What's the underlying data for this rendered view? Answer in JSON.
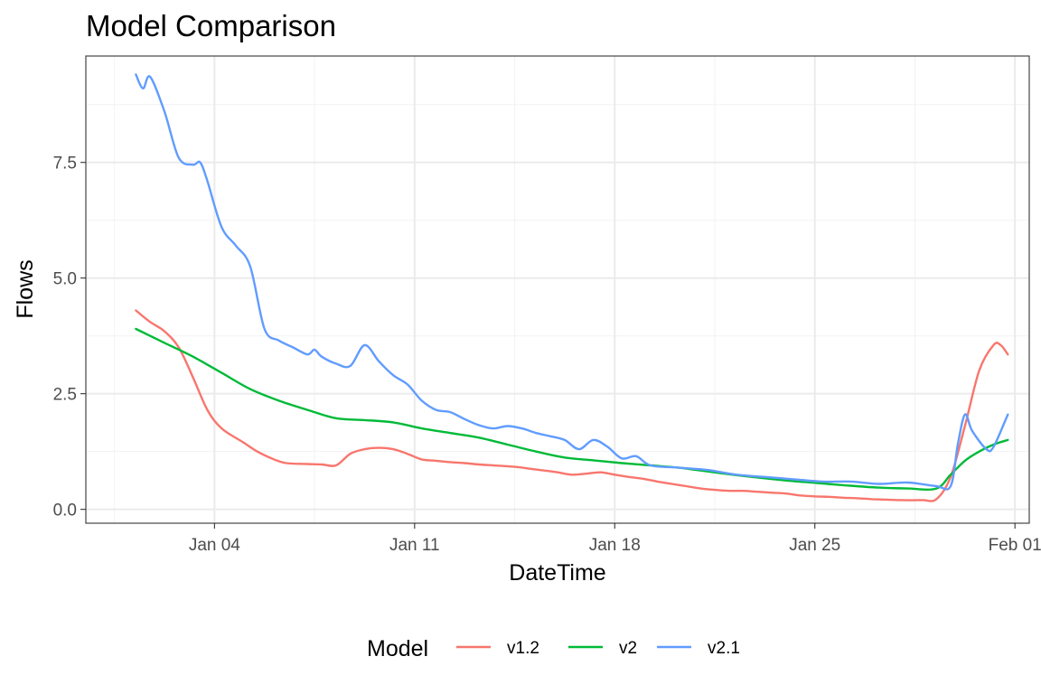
{
  "chart_data": {
    "type": "line",
    "title": "Model Comparison",
    "xlabel": "DateTime",
    "ylabel": "Flows",
    "x_axis": {
      "type": "date",
      "range": [
        "2024-12-30T12:00",
        "2025-02-01T12:00"
      ],
      "ticks": [
        {
          "value": "2025-01-04",
          "label": "Jan 04"
        },
        {
          "value": "2025-01-11",
          "label": "Jan 11"
        },
        {
          "value": "2025-01-18",
          "label": "Jan 18"
        },
        {
          "value": "2025-01-25",
          "label": "Jan 25"
        },
        {
          "value": "2025-02-01",
          "label": "Feb 01"
        }
      ]
    },
    "y_axis": {
      "range": [
        -0.3,
        9.8
      ],
      "ticks": [
        {
          "value": 0,
          "label": "0.0"
        },
        {
          "value": 2.5,
          "label": "2.5"
        },
        {
          "value": 5,
          "label": "5.0"
        },
        {
          "value": 7.5,
          "label": "7.5"
        }
      ],
      "minor_ticks": [
        1.25,
        3.75,
        6.25,
        8.75
      ]
    },
    "grid": true,
    "legend": {
      "title": "Model",
      "position": "bottom"
    },
    "series": [
      {
        "name": "v1.2",
        "color": "#F8766D",
        "points": [
          [
            "2025-01-01T06:00",
            4.3
          ],
          [
            "2025-01-01T18:00",
            4.05
          ],
          [
            "2025-01-02T06:00",
            3.85
          ],
          [
            "2025-01-02T18:00",
            3.5
          ],
          [
            "2025-01-03T06:00",
            2.85
          ],
          [
            "2025-01-03T18:00",
            2.15
          ],
          [
            "2025-01-04T06:00",
            1.75
          ],
          [
            "2025-01-05T00:00",
            1.45
          ],
          [
            "2025-01-05T12:00",
            1.25
          ],
          [
            "2025-01-06T00:00",
            1.1
          ],
          [
            "2025-01-06T12:00",
            1.0
          ],
          [
            "2025-01-07T06:00",
            0.98
          ],
          [
            "2025-01-07T18:00",
            0.97
          ],
          [
            "2025-01-08T06:00",
            0.95
          ],
          [
            "2025-01-08T18:00",
            1.2
          ],
          [
            "2025-01-09T06:00",
            1.3
          ],
          [
            "2025-01-09T18:00",
            1.33
          ],
          [
            "2025-01-10T06:00",
            1.3
          ],
          [
            "2025-01-10T18:00",
            1.2
          ],
          [
            "2025-01-11T06:00",
            1.08
          ],
          [
            "2025-01-11T18:00",
            1.05
          ],
          [
            "2025-01-12T06:00",
            1.02
          ],
          [
            "2025-01-12T18:00",
            1.0
          ],
          [
            "2025-01-13T06:00",
            0.97
          ],
          [
            "2025-01-13T18:00",
            0.95
          ],
          [
            "2025-01-14T12:00",
            0.92
          ],
          [
            "2025-01-15T00:00",
            0.88
          ],
          [
            "2025-01-15T12:00",
            0.84
          ],
          [
            "2025-01-16T00:00",
            0.8
          ],
          [
            "2025-01-16T12:00",
            0.75
          ],
          [
            "2025-01-17T00:00",
            0.77
          ],
          [
            "2025-01-17T12:00",
            0.8
          ],
          [
            "2025-01-18T00:00",
            0.75
          ],
          [
            "2025-01-18T12:00",
            0.7
          ],
          [
            "2025-01-19T00:00",
            0.66
          ],
          [
            "2025-01-19T12:00",
            0.6
          ],
          [
            "2025-01-20T00:00",
            0.55
          ],
          [
            "2025-01-20T12:00",
            0.5
          ],
          [
            "2025-01-21T00:00",
            0.45
          ],
          [
            "2025-01-21T12:00",
            0.42
          ],
          [
            "2025-01-22T00:00",
            0.4
          ],
          [
            "2025-01-22T12:00",
            0.4
          ],
          [
            "2025-01-23T00:00",
            0.38
          ],
          [
            "2025-01-23T12:00",
            0.36
          ],
          [
            "2025-01-24T00:00",
            0.34
          ],
          [
            "2025-01-24T12:00",
            0.3
          ],
          [
            "2025-01-25T00:00",
            0.28
          ],
          [
            "2025-01-25T12:00",
            0.27
          ],
          [
            "2025-01-26T00:00",
            0.25
          ],
          [
            "2025-01-26T12:00",
            0.24
          ],
          [
            "2025-01-27T00:00",
            0.22
          ],
          [
            "2025-01-27T12:00",
            0.21
          ],
          [
            "2025-01-28T00:00",
            0.2
          ],
          [
            "2025-01-28T18:00",
            0.2
          ],
          [
            "2025-01-29T06:00",
            0.22
          ],
          [
            "2025-01-29T18:00",
            0.7
          ],
          [
            "2025-01-30T06:00",
            1.8
          ],
          [
            "2025-01-30T18:00",
            3.0
          ],
          [
            "2025-01-31T06:00",
            3.55
          ],
          [
            "2025-01-31T12:00",
            3.55
          ],
          [
            "2025-01-31T18:00",
            3.35
          ]
        ]
      },
      {
        "name": "v2",
        "color": "#00BA38",
        "points": [
          [
            "2025-01-01T06:00",
            3.9
          ],
          [
            "2025-01-02T06:00",
            3.6
          ],
          [
            "2025-01-03T06:00",
            3.3
          ],
          [
            "2025-01-04T06:00",
            2.95
          ],
          [
            "2025-01-05T06:00",
            2.6
          ],
          [
            "2025-01-06T06:00",
            2.35
          ],
          [
            "2025-01-07T06:00",
            2.15
          ],
          [
            "2025-01-08T06:00",
            1.97
          ],
          [
            "2025-01-09T06:00",
            1.93
          ],
          [
            "2025-01-10T06:00",
            1.88
          ],
          [
            "2025-01-11T06:00",
            1.75
          ],
          [
            "2025-01-12T06:00",
            1.65
          ],
          [
            "2025-01-13T06:00",
            1.55
          ],
          [
            "2025-01-14T06:00",
            1.4
          ],
          [
            "2025-01-15T06:00",
            1.25
          ],
          [
            "2025-01-16T06:00",
            1.12
          ],
          [
            "2025-01-17T06:00",
            1.06
          ],
          [
            "2025-01-18T06:00",
            1.0
          ],
          [
            "2025-01-19T06:00",
            0.95
          ],
          [
            "2025-01-20T06:00",
            0.9
          ],
          [
            "2025-01-21T06:00",
            0.82
          ],
          [
            "2025-01-22T06:00",
            0.74
          ],
          [
            "2025-01-23T06:00",
            0.67
          ],
          [
            "2025-01-24T06:00",
            0.61
          ],
          [
            "2025-01-25T06:00",
            0.56
          ],
          [
            "2025-01-26T06:00",
            0.51
          ],
          [
            "2025-01-27T06:00",
            0.47
          ],
          [
            "2025-01-28T06:00",
            0.45
          ],
          [
            "2025-01-29T06:00",
            0.45
          ],
          [
            "2025-01-29T18:00",
            0.75
          ],
          [
            "2025-01-30T06:00",
            1.05
          ],
          [
            "2025-01-30T18:00",
            1.25
          ],
          [
            "2025-01-31T06:00",
            1.4
          ],
          [
            "2025-01-31T18:00",
            1.5
          ]
        ]
      },
      {
        "name": "v2.1",
        "color": "#619CFF",
        "points": [
          [
            "2025-01-01T06:00",
            9.4
          ],
          [
            "2025-01-01T12:00",
            9.1
          ],
          [
            "2025-01-01T18:00",
            9.35
          ],
          [
            "2025-01-02T06:00",
            8.6
          ],
          [
            "2025-01-02T18:00",
            7.6
          ],
          [
            "2025-01-03T06:00",
            7.45
          ],
          [
            "2025-01-03T12:00",
            7.5
          ],
          [
            "2025-01-03T18:00",
            7.1
          ],
          [
            "2025-01-04T06:00",
            6.1
          ],
          [
            "2025-01-04T18:00",
            5.7
          ],
          [
            "2025-01-05T06:00",
            5.25
          ],
          [
            "2025-01-05T18:00",
            3.9
          ],
          [
            "2025-01-06T06:00",
            3.65
          ],
          [
            "2025-01-06T18:00",
            3.5
          ],
          [
            "2025-01-07T06:00",
            3.35
          ],
          [
            "2025-01-07T12:00",
            3.45
          ],
          [
            "2025-01-07T18:00",
            3.3
          ],
          [
            "2025-01-08T06:00",
            3.15
          ],
          [
            "2025-01-08T18:00",
            3.1
          ],
          [
            "2025-01-09T06:00",
            3.55
          ],
          [
            "2025-01-09T18:00",
            3.2
          ],
          [
            "2025-01-10T06:00",
            2.9
          ],
          [
            "2025-01-10T18:00",
            2.7
          ],
          [
            "2025-01-11T06:00",
            2.35
          ],
          [
            "2025-01-11T18:00",
            2.15
          ],
          [
            "2025-01-12T06:00",
            2.1
          ],
          [
            "2025-01-12T18:00",
            1.95
          ],
          [
            "2025-01-13T06:00",
            1.82
          ],
          [
            "2025-01-13T18:00",
            1.75
          ],
          [
            "2025-01-14T06:00",
            1.8
          ],
          [
            "2025-01-14T18:00",
            1.75
          ],
          [
            "2025-01-15T06:00",
            1.65
          ],
          [
            "2025-01-15T18:00",
            1.58
          ],
          [
            "2025-01-16T06:00",
            1.5
          ],
          [
            "2025-01-16T18:00",
            1.3
          ],
          [
            "2025-01-17T06:00",
            1.5
          ],
          [
            "2025-01-17T18:00",
            1.35
          ],
          [
            "2025-01-18T06:00",
            1.1
          ],
          [
            "2025-01-18T18:00",
            1.15
          ],
          [
            "2025-01-19T06:00",
            0.95
          ],
          [
            "2025-01-20T06:00",
            0.9
          ],
          [
            "2025-01-21T06:00",
            0.85
          ],
          [
            "2025-01-22T06:00",
            0.75
          ],
          [
            "2025-01-23T06:00",
            0.7
          ],
          [
            "2025-01-24T06:00",
            0.65
          ],
          [
            "2025-01-25T06:00",
            0.6
          ],
          [
            "2025-01-26T06:00",
            0.6
          ],
          [
            "2025-01-27T06:00",
            0.55
          ],
          [
            "2025-01-28T06:00",
            0.58
          ],
          [
            "2025-01-29T06:00",
            0.5
          ],
          [
            "2025-01-29T18:00",
            0.5
          ],
          [
            "2025-01-30T00:00",
            1.4
          ],
          [
            "2025-01-30T06:00",
            2.05
          ],
          [
            "2025-01-30T12:00",
            1.7
          ],
          [
            "2025-01-31T00:00",
            1.3
          ],
          [
            "2025-01-31T06:00",
            1.35
          ],
          [
            "2025-01-31T18:00",
            2.05
          ]
        ]
      }
    ]
  }
}
